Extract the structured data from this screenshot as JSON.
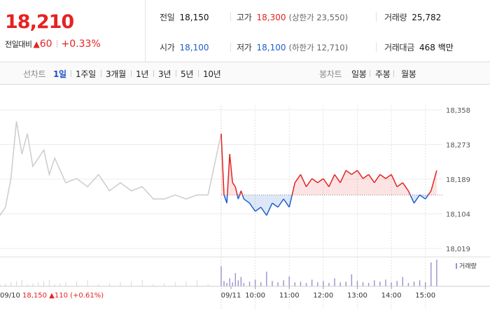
{
  "quote": {
    "price": "18,210",
    "change_label": "전일대비",
    "change_arrow": "▲",
    "change": "60",
    "change_pct": "+0.33%"
  },
  "stats": {
    "prev_close_label": "전일",
    "prev_close": "18,150",
    "high_label": "고가",
    "high": "18,300",
    "upper_limit": "(상한가 23,550)",
    "volume_label": "거래량",
    "volume": "25,782",
    "open_label": "시가",
    "open": "18,100",
    "low_label": "저가",
    "low": "18,100",
    "lower_limit": "(하한가 12,710)",
    "amount_label": "거래대금",
    "amount": "468 백만"
  },
  "period_bar": {
    "line_title": "선차트",
    "line_periods": [
      "1일",
      "1주일",
      "3개월",
      "1년",
      "3년",
      "5년",
      "10년"
    ],
    "active_period": "1일",
    "candle_title": "봉차트",
    "candle_periods": [
      "일봉",
      "주봉",
      "월봉"
    ]
  },
  "colors": {
    "up": "#e52222",
    "down": "#1f5fcc",
    "prev_day_line": "#cccccc",
    "volume": "#9b8fcf"
  },
  "chart_data": {
    "type": "line",
    "ylim": [
      18019,
      18358
    ],
    "y_ticks": [
      "18,358",
      "18,273",
      "18,189",
      "18,104",
      "18,019"
    ],
    "baseline": 18150,
    "x_ticks": [
      "09/11",
      "10:00",
      "11:00",
      "12:00",
      "13:00",
      "14:00",
      "15:00"
    ],
    "volume_legend": "거래량",
    "prev_day_caption": {
      "date": "09/10",
      "close": "18,150",
      "arrow": "▲",
      "change": "110",
      "pct": "(+0.61%)"
    },
    "previous_day": {
      "x": [
        "09:00",
        "09:10",
        "09:20",
        "09:30",
        "09:40",
        "09:50",
        "10:00",
        "10:10",
        "10:20",
        "10:30",
        "10:40",
        "10:50",
        "11:00",
        "11:20",
        "11:40",
        "12:00",
        "12:20",
        "12:40",
        "13:00",
        "13:20",
        "13:40",
        "14:00",
        "14:20",
        "14:40",
        "15:00",
        "15:20"
      ],
      "values": [
        18100,
        18120,
        18190,
        18330,
        18250,
        18300,
        18220,
        18240,
        18260,
        18200,
        18240,
        18210,
        18180,
        18190,
        18170,
        18200,
        18160,
        18180,
        18160,
        18170,
        18140,
        18140,
        18150,
        18140,
        18150,
        18150
      ]
    },
    "today": {
      "x": [
        "09:00",
        "09:05",
        "09:10",
        "09:15",
        "09:20",
        "09:25",
        "09:30",
        "09:35",
        "09:40",
        "09:50",
        "10:00",
        "10:10",
        "10:20",
        "10:30",
        "10:40",
        "10:50",
        "11:00",
        "11:10",
        "11:20",
        "11:30",
        "11:40",
        "11:50",
        "12:00",
        "12:10",
        "12:20",
        "12:30",
        "12:40",
        "12:50",
        "13:00",
        "13:10",
        "13:20",
        "13:30",
        "13:40",
        "13:50",
        "14:00",
        "14:10",
        "14:20",
        "14:30",
        "14:40",
        "14:50",
        "15:00",
        "15:10",
        "15:20"
      ],
      "values": [
        18300,
        18150,
        18130,
        18250,
        18180,
        18170,
        18140,
        18160,
        18140,
        18130,
        18110,
        18120,
        18100,
        18130,
        18120,
        18140,
        18120,
        18180,
        18200,
        18170,
        18190,
        18180,
        18190,
        18170,
        18200,
        18180,
        18210,
        18200,
        18210,
        18190,
        18200,
        18180,
        18200,
        18190,
        18200,
        18170,
        18180,
        18160,
        18130,
        18150,
        18140,
        18160,
        18210
      ]
    },
    "volume": {
      "values": [
        30,
        8,
        5,
        12,
        6,
        20,
        9,
        14,
        5,
        7,
        10,
        6,
        22,
        8,
        6,
        9,
        15,
        6,
        7,
        5,
        10,
        6,
        8,
        5,
        12,
        6,
        7,
        18,
        8,
        6,
        5,
        9,
        7,
        10,
        6,
        8,
        14,
        5,
        7,
        9,
        6,
        36,
        40
      ]
    }
  }
}
